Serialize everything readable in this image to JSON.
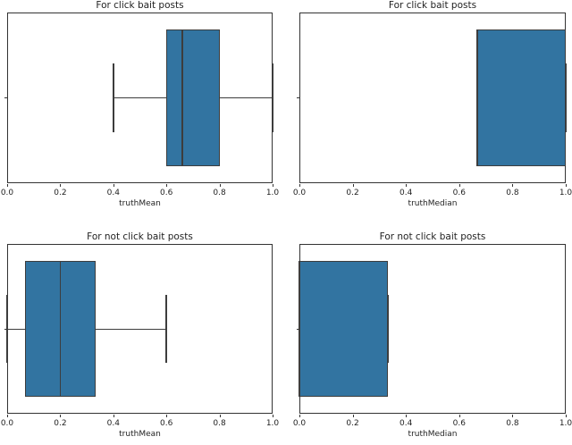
{
  "figure": {
    "background": "#ffffff",
    "box_fill_color": "#3274a1",
    "box_edge_color": "#3d3d3d",
    "spine_color": "#333333",
    "text_color": "#1f1f1f"
  },
  "chart_data": [
    {
      "type": "box",
      "orientation": "horizontal",
      "title": "For click bait posts",
      "xlabel": "truthMean",
      "ylabel": "",
      "xlim": [
        0.0,
        1.0
      ],
      "grid": false,
      "xticks": [
        0.0,
        0.2,
        0.4,
        0.6,
        0.8,
        1.0
      ],
      "xticklabels": [
        "0.0",
        "0.2",
        "0.4",
        "0.6",
        "0.8",
        "1.0"
      ],
      "stats": {
        "whislo": 0.4,
        "q1": 0.6,
        "med": 0.66,
        "q3": 0.8,
        "whishi": 1.0
      }
    },
    {
      "type": "box",
      "orientation": "horizontal",
      "title": "For click bait posts",
      "xlabel": "truthMedian",
      "ylabel": "",
      "xlim": [
        0.0,
        1.0
      ],
      "grid": false,
      "xticks": [
        0.0,
        0.2,
        0.4,
        0.6,
        0.8,
        1.0
      ],
      "xticklabels": [
        "0.0",
        "0.2",
        "0.4",
        "0.6",
        "0.8",
        "1.0"
      ],
      "stats": {
        "whislo": 0.667,
        "q1": 0.667,
        "med": 0.667,
        "q3": 1.0,
        "whishi": 1.0
      }
    },
    {
      "type": "box",
      "orientation": "horizontal",
      "title": "For not click bait posts",
      "xlabel": "truthMean",
      "ylabel": "",
      "xlim": [
        0.0,
        1.0
      ],
      "grid": false,
      "xticks": [
        0.0,
        0.2,
        0.4,
        0.6,
        0.8,
        1.0
      ],
      "xticklabels": [
        "0.0",
        "0.2",
        "0.4",
        "0.6",
        "0.8",
        "1.0"
      ],
      "stats": {
        "whislo": 0.0,
        "q1": 0.067,
        "med": 0.2,
        "q3": 0.333,
        "whishi": 0.6
      }
    },
    {
      "type": "box",
      "orientation": "horizontal",
      "title": "For not click bait posts",
      "xlabel": "truthMedian",
      "ylabel": "",
      "xlim": [
        0.0,
        1.0
      ],
      "grid": false,
      "xticks": [
        0.0,
        0.2,
        0.4,
        0.6,
        0.8,
        1.0
      ],
      "xticklabels": [
        "0.0",
        "0.2",
        "0.4",
        "0.6",
        "0.8",
        "1.0"
      ],
      "stats": {
        "whislo": 0.0,
        "q1": 0.0,
        "med": 0.0,
        "q3": 0.333,
        "whishi": 0.333
      }
    }
  ]
}
